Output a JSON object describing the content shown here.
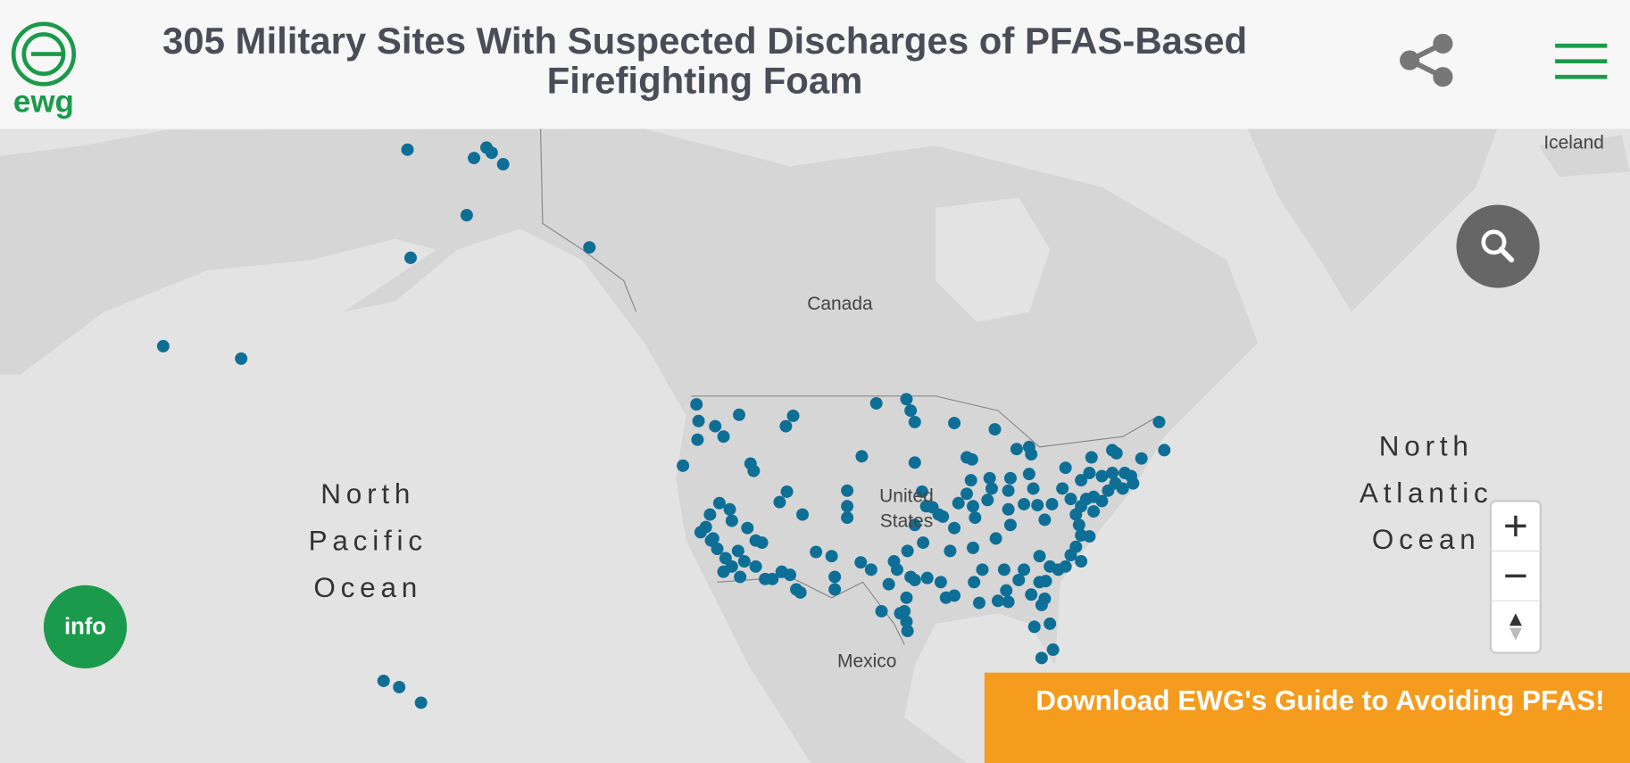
{
  "header": {
    "logo_text": "ewg",
    "title_lines": [
      "305 Military Sites With Suspected Discharges of PFAS-Based",
      "Firefighting Foam"
    ]
  },
  "map": {
    "labels": {
      "iceland": "Iceland",
      "canada": "Canada",
      "united_states": [
        "United",
        "States"
      ],
      "mexico": "Mexico",
      "north_pacific": [
        "North",
        "Pacific",
        "Ocean"
      ],
      "north_atlantic": [
        "North",
        "Atlantic",
        "Ocean"
      ]
    }
  },
  "buttons": {
    "info": "info"
  },
  "banner": {
    "text": "Download EWG's Guide to Avoiding PFAS!"
  }
}
